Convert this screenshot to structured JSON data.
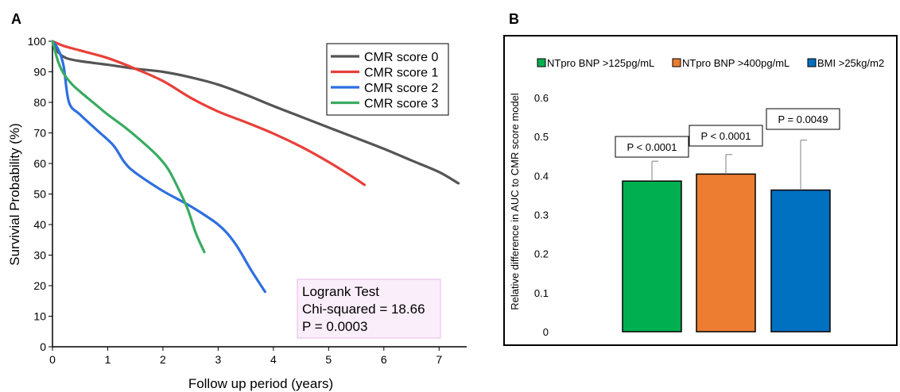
{
  "chart_data": [
    {
      "panel_label": "A",
      "type": "line",
      "xlabel": "Follow up period (years)",
      "ylabel": "Survivial Probability (%)",
      "xlim": [
        0,
        7.5
      ],
      "ylim": [
        0,
        100
      ],
      "xticks": [
        "0",
        "1",
        "2",
        "3",
        "4",
        "5",
        "6",
        "7"
      ],
      "yticks": [
        "0",
        "10",
        "20",
        "30",
        "40",
        "50",
        "60",
        "70",
        "80",
        "90",
        "100"
      ],
      "grid": false,
      "legend_position": "top-right",
      "series": [
        {
          "name": "CMR score 0",
          "color": "#555555",
          "x": [
            0,
            0.1,
            0.25,
            0.5,
            1.0,
            1.5,
            2.0,
            2.5,
            3.0,
            3.5,
            4.0,
            4.5,
            5.0,
            5.5,
            6.0,
            6.5,
            7.0,
            7.35
          ],
          "y": [
            100,
            96.5,
            94.5,
            93.5,
            92.3,
            91.0,
            90.0,
            88.2,
            85.8,
            82.5,
            78.8,
            75.3,
            71.8,
            68.3,
            64.8,
            61.0,
            57.2,
            53.5
          ]
        },
        {
          "name": "CMR score 1",
          "color": "#e8403a",
          "x": [
            0,
            0.2,
            0.5,
            1.0,
            1.5,
            2.0,
            2.5,
            3.0,
            3.5,
            4.0,
            4.5,
            5.0,
            5.4,
            5.65
          ],
          "y": [
            100,
            98.5,
            97.0,
            94.5,
            91.0,
            87.0,
            81.5,
            77.0,
            73.5,
            69.8,
            65.5,
            60.5,
            56.0,
            53.0
          ]
        },
        {
          "name": "CMR score 2",
          "color": "#2f6fe0",
          "x": [
            0,
            0.1,
            0.2,
            0.3,
            0.5,
            0.8,
            1.1,
            1.3,
            1.5,
            2.0,
            2.5,
            3.0,
            3.3,
            3.6,
            3.85
          ],
          "y": [
            100,
            97.5,
            92.0,
            80.0,
            76.0,
            71.0,
            66.0,
            60.5,
            57.0,
            51.0,
            46.0,
            40.0,
            34.0,
            25.0,
            18.0
          ]
        },
        {
          "name": "CMR score 3",
          "color": "#3aab62",
          "x": [
            0,
            0.1,
            0.2,
            0.35,
            0.5,
            0.8,
            1.0,
            1.3,
            1.6,
            1.9,
            2.1,
            2.3,
            2.45,
            2.6,
            2.75
          ],
          "y": [
            100,
            93.5,
            89.5,
            86.0,
            83.5,
            79.0,
            76.0,
            72.0,
            67.5,
            62.5,
            58.0,
            51.0,
            45.0,
            37.0,
            31.0
          ]
        }
      ],
      "annotation": {
        "lines": [
          "Logrank Test",
          "Chi-squared = 18.66",
          "P = 0.0003"
        ],
        "background": "#fbeefb"
      }
    },
    {
      "panel_label": "B",
      "type": "bar",
      "ylabel": "Relative difference in AUC to CMR score model",
      "ylim": [
        0,
        0.6
      ],
      "yticks": [
        "0",
        "0.1",
        "0.2",
        "0.3",
        "0.4",
        "0.5",
        "0.6"
      ],
      "legend_position": "top",
      "series": [
        {
          "name": "NTpro BNP >125pg/mL",
          "color": "#00b050",
          "value": 0.386,
          "error": 0.051,
          "p_label": "P < 0.0001"
        },
        {
          "name": "NTpro BNP >400pg/mL",
          "color": "#ed7d31",
          "value": 0.404,
          "error": 0.05,
          "p_label": "P < 0.0001"
        },
        {
          "name": "BMI >25kg/m2",
          "color": "#0070c0",
          "value": 0.363,
          "error": 0.128,
          "p_label": "P = 0.0049"
        }
      ]
    }
  ]
}
